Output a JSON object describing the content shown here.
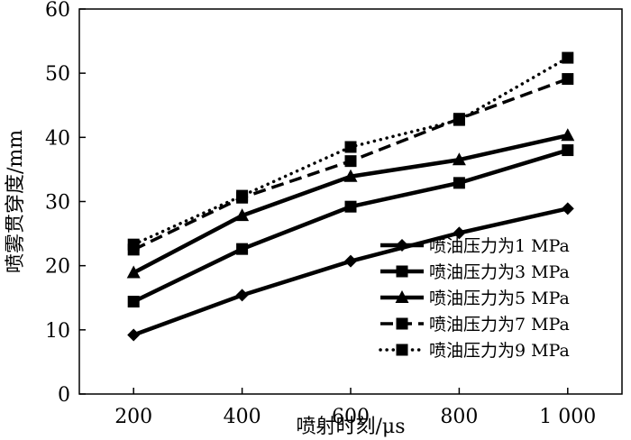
{
  "chart_data": {
    "type": "line",
    "title": "",
    "xlabel": "喷射时刻/μs",
    "ylabel": "喷雾贯穿度/mm",
    "x": [
      200,
      400,
      600,
      800,
      1000
    ],
    "x_tick_labels": [
      "200",
      "400",
      "600",
      "800",
      "1 000"
    ],
    "xlim": [
      100,
      1100
    ],
    "ylim": [
      0,
      60
    ],
    "y_ticks": [
      0,
      10,
      20,
      30,
      40,
      50,
      60
    ],
    "grid": false,
    "legend_position": "bottom-right",
    "series": [
      {
        "name": "喷油压力为1 MPa",
        "marker": "diamond",
        "line": "solid",
        "values": [
          9.2,
          15.4,
          20.7,
          25.1,
          28.9
        ]
      },
      {
        "name": "喷油压力为3 MPa",
        "marker": "square",
        "line": "solid",
        "values": [
          14.4,
          22.6,
          29.2,
          32.9,
          38.0
        ]
      },
      {
        "name": "喷油压力为5 MPa",
        "marker": "triangle",
        "line": "solid",
        "values": [
          18.9,
          27.8,
          33.9,
          36.5,
          40.3
        ]
      },
      {
        "name": "喷油压力为7 MPa",
        "marker": "square",
        "line": "dashed",
        "values": [
          22.5,
          30.6,
          36.3,
          42.9,
          49.1
        ]
      },
      {
        "name": "喷油压力为9 MPa",
        "marker": "square",
        "line": "dotted",
        "values": [
          23.3,
          30.9,
          38.5,
          42.7,
          52.4
        ]
      }
    ]
  }
}
